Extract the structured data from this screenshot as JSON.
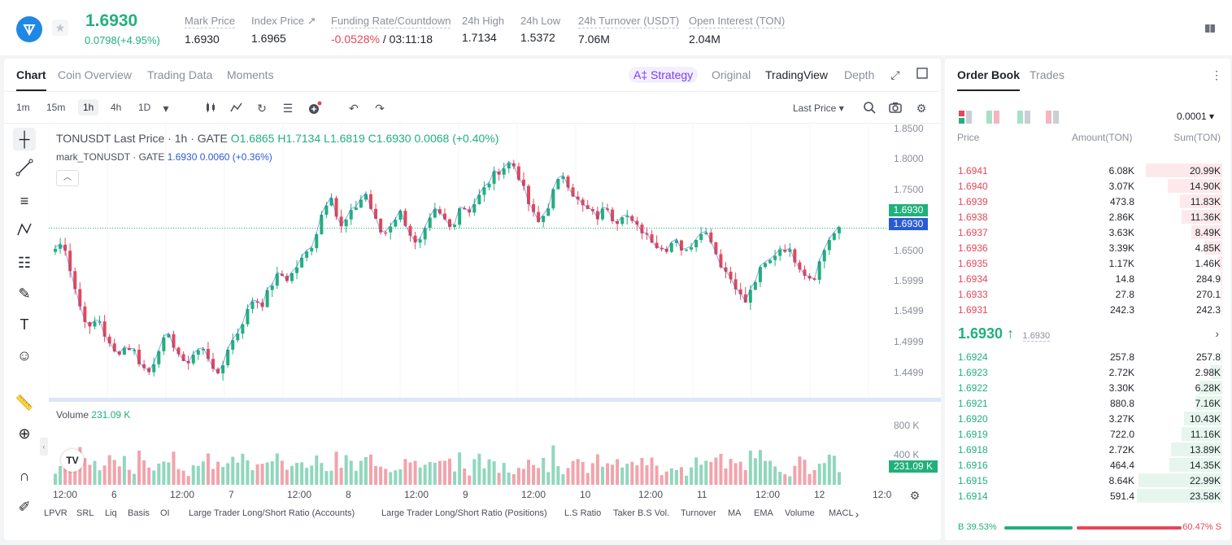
{
  "ticker": {
    "last_price": "1.6930",
    "change": "0.0798(+4.95%)",
    "stats": [
      {
        "label": "Mark Price",
        "value": "1.6930"
      },
      {
        "label": "Index Price ↗",
        "value": "1.6965"
      },
      {
        "label": "Funding Rate/Countdown",
        "value_neg": "-0.0528%",
        "value_rest": " / 03:11:18"
      },
      {
        "label": "24h High",
        "value": "1.7134"
      },
      {
        "label": "24h Low",
        "value": "1.5372"
      },
      {
        "label": "24h Turnover (USDT)",
        "value": "7.06M"
      },
      {
        "label": "Open Interest (TON)",
        "value": "2.04M"
      }
    ]
  },
  "chart_tabs": [
    "Chart",
    "Coin Overview",
    "Trading Data",
    "Moments"
  ],
  "chart_views": {
    "strategy": "A‡ Strategy",
    "original": "Original",
    "tradingview": "TradingView",
    "depth": "Depth"
  },
  "intervals": [
    "1m",
    "15m",
    "1h",
    "4h",
    "1D"
  ],
  "price_source": "Last Price",
  "legend": {
    "main": "TONUSDT Last Price · 1h · GATE",
    "o": "O1.6865",
    "h": "H1.7134",
    "l": "L1.6819",
    "c": "C1.6930",
    "chg": "0.0068 (+0.40%)",
    "mark": "mark_TONUSDT · GATE",
    "mark_val": "1.6930 0.0060 (+0.36%)"
  },
  "volume": {
    "label": "Volume",
    "value": "231.09 K",
    "tag": "231.09 K",
    "levels": [
      "800 K",
      "400 K"
    ]
  },
  "price_tags": {
    "mark": "1.6930",
    "last": "1.6930"
  },
  "colors": {
    "up": "#21b07c",
    "down": "#e5475a",
    "mark_line": "#2a5bd7"
  },
  "chart_data": {
    "type": "candlestick",
    "series": [
      {
        "name": "TONUSDT Last Price"
      },
      {
        "name": "mark_TONUSDT"
      }
    ],
    "ylim": [
      1.42,
      1.86
    ],
    "yticks": [
      "1.8500",
      "1.8000",
      "1.7500",
      "1.6930",
      "1.6500",
      "1.5999",
      "1.5499",
      "1.4999",
      "1.4499"
    ],
    "x_ticks": [
      "12:00",
      "6",
      "12:00",
      "7",
      "12:00",
      "8",
      "12:00",
      "9",
      "12:00",
      "10",
      "12:00",
      "11",
      "12:00",
      "12",
      "12:0"
    ],
    "price_path": [
      1.66,
      1.67,
      1.61,
      1.56,
      1.53,
      1.55,
      1.51,
      1.49,
      1.5,
      1.5,
      1.47,
      1.46,
      1.5,
      1.52,
      1.5,
      1.47,
      1.49,
      1.5,
      1.48,
      1.45,
      1.5,
      1.52,
      1.55,
      1.58,
      1.57,
      1.6,
      1.62,
      1.61,
      1.63,
      1.65,
      1.67,
      1.72,
      1.75,
      1.69,
      1.71,
      1.73,
      1.75,
      1.71,
      1.68,
      1.7,
      1.72,
      1.69,
      1.66,
      1.69,
      1.72,
      1.71,
      1.69,
      1.73,
      1.72,
      1.74,
      1.76,
      1.78,
      1.79,
      1.8,
      1.77,
      1.73,
      1.7,
      1.72,
      1.76,
      1.78,
      1.75,
      1.73,
      1.72,
      1.71,
      1.73,
      1.7,
      1.72,
      1.7,
      1.69,
      1.68,
      1.66,
      1.66,
      1.68,
      1.65,
      1.67,
      1.69,
      1.68,
      1.64,
      1.62,
      1.6,
      1.57,
      1.6,
      1.63,
      1.64,
      1.66,
      1.66,
      1.64,
      1.62,
      1.61,
      1.65,
      1.68,
      1.69
    ]
  },
  "indicators": [
    "LPVR",
    "SRL",
    "Liq",
    "Basis",
    "OI",
    "Large Trader Long/Short Ratio (Accounts)",
    "Large Trader Long/Short Ratio (Positions)",
    "L.S Ratio",
    "Taker B.S Vol.",
    "Turnover",
    "MA",
    "EMA",
    "Volume",
    "MACL"
  ],
  "orderbook": {
    "tabs": [
      "Order Book",
      "Trades"
    ],
    "step": "0.0001",
    "headers": {
      "price": "Price",
      "amount": "Amount(TON)",
      "sum": "Sum(TON)"
    },
    "asks": [
      {
        "p": "1.6941",
        "a": "6.08K",
        "s": "20.99K",
        "d": 0.9
      },
      {
        "p": "1.6940",
        "a": "3.07K",
        "s": "14.90K",
        "d": 0.64
      },
      {
        "p": "1.6939",
        "a": "473.8",
        "s": "11.83K",
        "d": 0.5
      },
      {
        "p": "1.6938",
        "a": "2.86K",
        "s": "11.36K",
        "d": 0.48
      },
      {
        "p": "1.6937",
        "a": "3.63K",
        "s": "8.49K",
        "d": 0.36
      },
      {
        "p": "1.6936",
        "a": "3.39K",
        "s": "4.85K",
        "d": 0.21
      },
      {
        "p": "1.6935",
        "a": "1.17K",
        "s": "1.46K",
        "d": 0.06
      },
      {
        "p": "1.6934",
        "a": "14.8",
        "s": "284.9",
        "d": 0.02
      },
      {
        "p": "1.6933",
        "a": "27.8",
        "s": "270.1",
        "d": 0.02
      },
      {
        "p": "1.6931",
        "a": "242.3",
        "s": "242.3",
        "d": 0.01
      }
    ],
    "mid_price": "1.6930 ↑",
    "mid_mark": "1.6930",
    "bids": [
      {
        "p": "1.6924",
        "a": "257.8",
        "s": "257.8",
        "d": 0.02
      },
      {
        "p": "1.6923",
        "a": "2.72K",
        "s": "2.98K",
        "d": 0.13
      },
      {
        "p": "1.6922",
        "a": "3.30K",
        "s": "6.28K",
        "d": 0.27
      },
      {
        "p": "1.6921",
        "a": "880.8",
        "s": "7.16K",
        "d": 0.31
      },
      {
        "p": "1.6920",
        "a": "3.27K",
        "s": "10.43K",
        "d": 0.45
      },
      {
        "p": "1.6919",
        "a": "722.0",
        "s": "11.16K",
        "d": 0.48
      },
      {
        "p": "1.6918",
        "a": "2.72K",
        "s": "13.89K",
        "d": 0.6
      },
      {
        "p": "1.6916",
        "a": "464.4",
        "s": "14.35K",
        "d": 0.62
      },
      {
        "p": "1.6915",
        "a": "8.64K",
        "s": "22.99K",
        "d": 0.98
      },
      {
        "p": "1.6914",
        "a": "591.4",
        "s": "23.58K",
        "d": 1.0
      }
    ],
    "ratio_buy": "B 39.53%",
    "ratio_sell": "60.47% S",
    "buy_share": 0.3953
  }
}
